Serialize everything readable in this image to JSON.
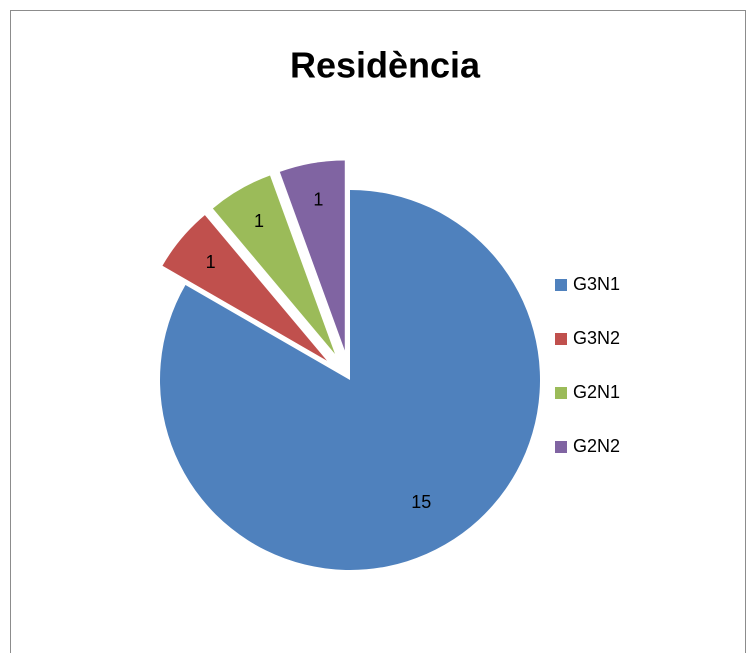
{
  "chart_data": {
    "type": "pie",
    "title": "Residència",
    "categories": [
      "G3N1",
      "G3N2",
      "G2N1",
      "G2N2"
    ],
    "values": [
      15,
      1,
      1,
      1
    ],
    "colors": [
      "#4f81bd",
      "#c0504d",
      "#9bbb59",
      "#8064a2"
    ],
    "legend": "right"
  }
}
